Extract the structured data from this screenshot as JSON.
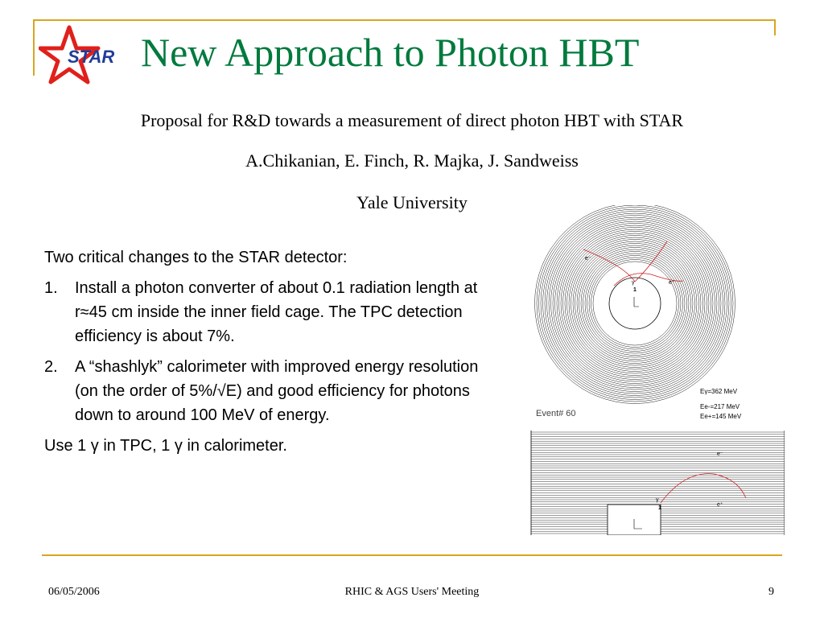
{
  "slide": {
    "title": "New Approach to Photon HBT",
    "subtitle": "Proposal for R&D towards a measurement of direct photon HBT with STAR",
    "authors": "A.Chikanian, E. Finch, R. Majka, J. Sandweiss",
    "institution": "Yale University",
    "logo_text": "STAR"
  },
  "body": {
    "intro": "Two critical changes to the STAR detector:",
    "items": [
      {
        "num": "1.",
        "text": "Install a photon converter of about 0.1 radiation length at r≈45 cm inside the inner field cage. The TPC detection efficiency is about 7%."
      },
      {
        "num": "2.",
        "text": "A “shashlyk” calorimeter with improved energy resolution (on the order of 5%/√E) and good efficiency for photons down to around 100 MeV of energy."
      }
    ],
    "closing": "Use 1 γ in TPC, 1 γ in calorimeter."
  },
  "figure": {
    "event_label": "Event# 60",
    "energy_gamma": "Eγ=362 MeV",
    "energy_eminus": "Ee-=217 MeV",
    "energy_eplus": "Ee+=145 MeV",
    "label_eminus": "e⁻",
    "label_eplus": "e⁺",
    "label_gamma": "γ",
    "label_one": "1"
  },
  "footer": {
    "date": "06/05/2006",
    "meeting": "RHIC & AGS Users' Meeting",
    "page": "9"
  },
  "colors": {
    "title": "#007a3d",
    "rule": "#d9a520",
    "logo_star": "#e0201b",
    "logo_text": "#1f3d99",
    "track": "#cc2222"
  }
}
